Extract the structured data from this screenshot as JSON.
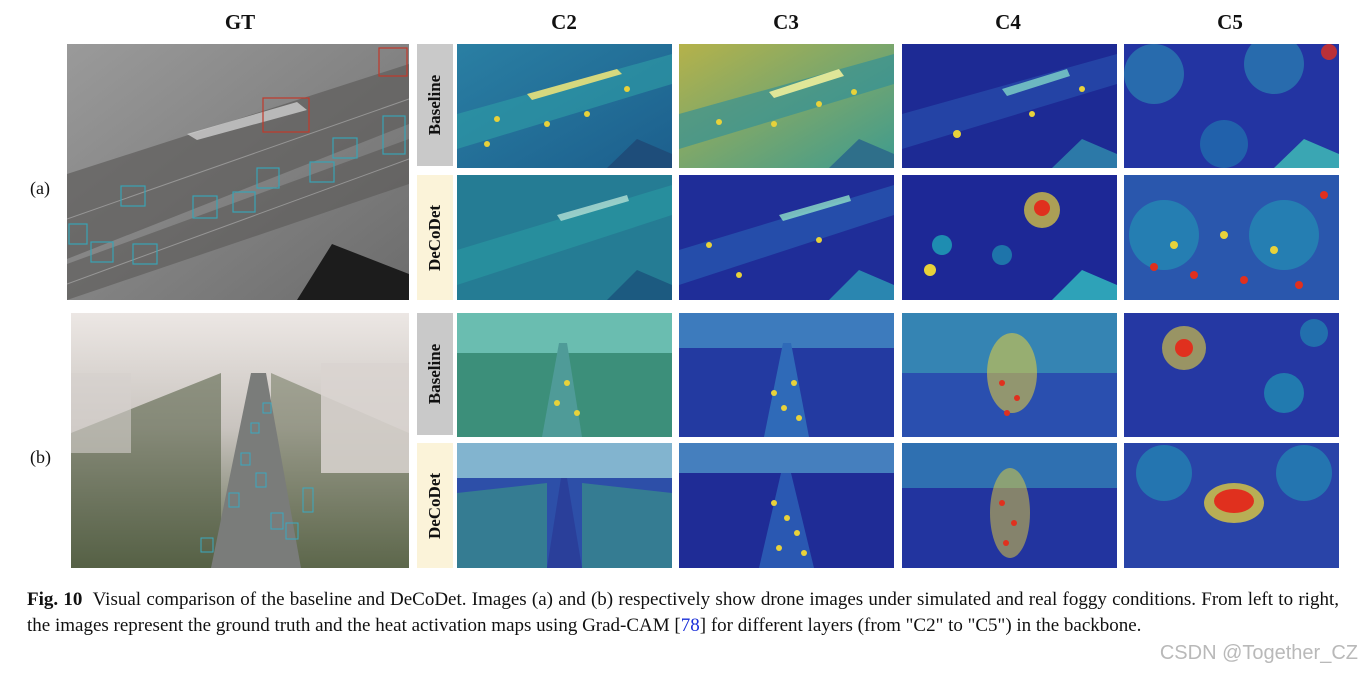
{
  "columns": {
    "gt": "GT",
    "c2": "C2",
    "c3": "C3",
    "c4": "C4",
    "c5": "C5"
  },
  "rows": {
    "a": "(a)",
    "b": "(b)"
  },
  "tabs": {
    "baseline": "Baseline",
    "decodet": "DeCoDet"
  },
  "caption": {
    "fig": "Fig. 10",
    "text_1": "Visual comparison of the baseline and DeCoDet. Images (a) and (b) respectively show drone images under simulated and real foggy conditions. From left to right, the images represent the ground truth and the heat activation maps using Grad-CAM [",
    "ref": "78",
    "text_2": "] for different layers (from \"C2\" to \"C5\") in the backbone."
  },
  "watermark": "CSDN @Together_CZ",
  "colors": {
    "heat_low": "#1a1f8c",
    "heat_mid": "#1fa6b8",
    "heat_high": "#e8d23a",
    "heat_peak": "#e0301e",
    "fog_gray": "#8a8a8a",
    "fog_white": "#e8e4e2"
  }
}
